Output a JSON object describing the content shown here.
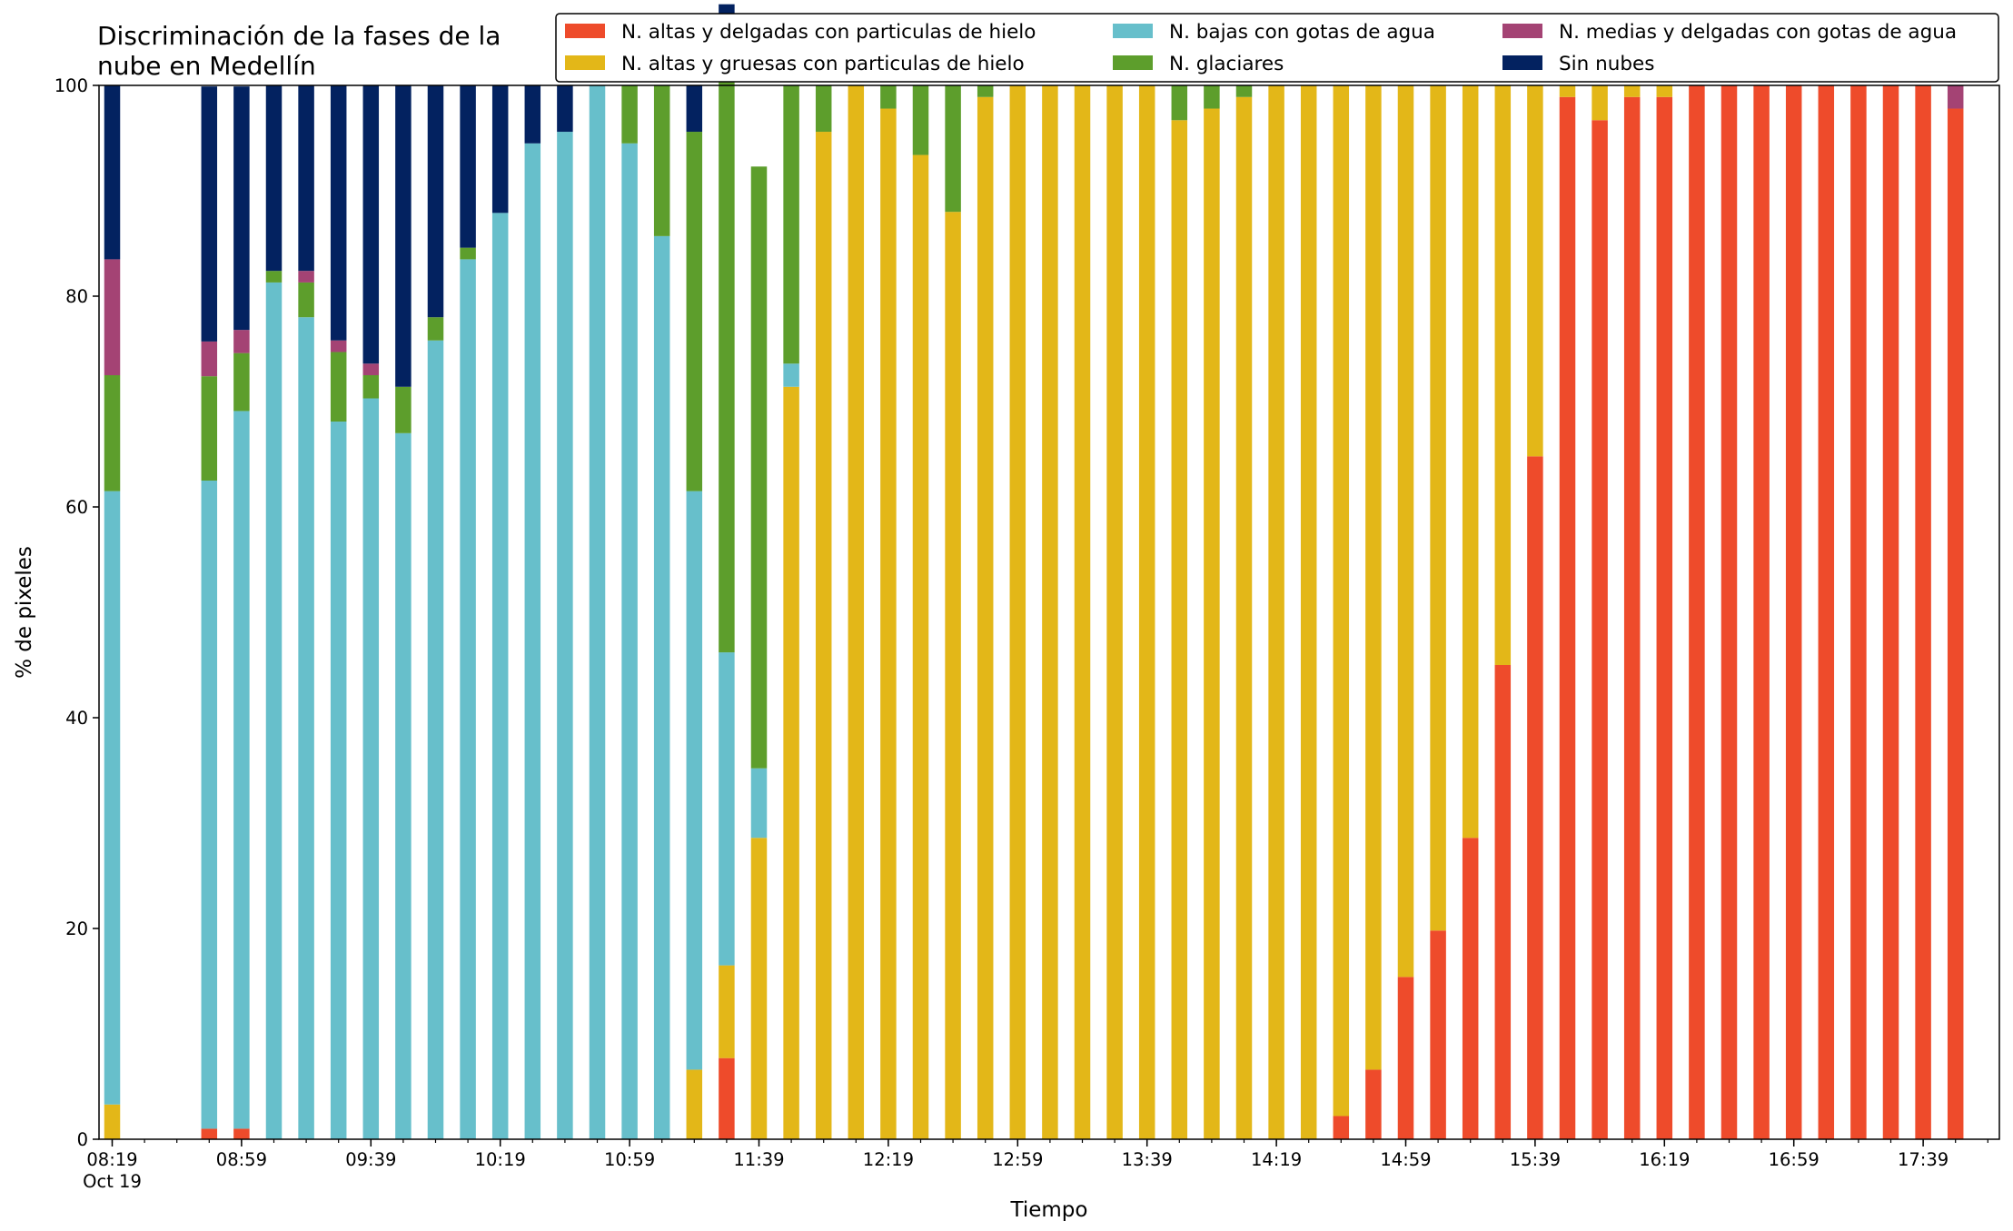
{
  "chart_data": {
    "type": "bar",
    "stacked": true,
    "title": "Discriminación de la fases de la\nnube en Medellín",
    "xlabel": "Tiempo",
    "ylabel": "% de pixeles",
    "ylim": [
      0,
      100
    ],
    "yticks": [
      0,
      20,
      40,
      60,
      80,
      100
    ],
    "x_first_time": "08:19",
    "x_interval_minutes": 10,
    "x_tick_labels": [
      "08:19",
      "08:59",
      "09:39",
      "10:19",
      "10:59",
      "11:39",
      "12:19",
      "12:59",
      "13:39",
      "14:19",
      "14:59",
      "15:39",
      "16:19",
      "16:59",
      "17:39"
    ],
    "x_tick_sublabel": "Oct 19",
    "legend_position": "top-right",
    "categories": [
      "08:19",
      "08:29",
      "08:39",
      "08:49",
      "08:59",
      "09:09",
      "09:19",
      "09:29",
      "09:39",
      "09:49",
      "09:59",
      "10:09",
      "10:19",
      "10:29",
      "10:39",
      "10:49",
      "10:59",
      "11:09",
      "11:19",
      "11:29",
      "11:39",
      "11:49",
      "11:59",
      "12:09",
      "12:19",
      "12:29",
      "12:39",
      "12:49",
      "12:59",
      "13:09",
      "13:19",
      "13:29",
      "13:39",
      "13:49",
      "13:59",
      "14:09",
      "14:19",
      "14:29",
      "14:39",
      "14:49",
      "14:59",
      "15:09",
      "15:19",
      "15:29",
      "15:39",
      "15:49",
      "15:59",
      "16:09",
      "16:19",
      "16:29",
      "16:39",
      "16:49",
      "16:59",
      "17:09",
      "17:19",
      "17:29",
      "17:39",
      "17:49"
    ],
    "series": [
      {
        "name": "N. altas y delgadas con particulas de hielo",
        "color": "#ee4b2b",
        "values": [
          0,
          null,
          null,
          1,
          1,
          0,
          0,
          0,
          0,
          0,
          0,
          0,
          0,
          0,
          0,
          0,
          0,
          0,
          0,
          7.7,
          0,
          0,
          0,
          0,
          0,
          0,
          0,
          0,
          0,
          0,
          0,
          0,
          0,
          0,
          0,
          0,
          0,
          0,
          2.2,
          6.6,
          15.4,
          19.8,
          28.6,
          45,
          64.8,
          98.9,
          96.7,
          98.9,
          98.9,
          100,
          100,
          100,
          100,
          100,
          100,
          100,
          100,
          97.8
        ]
      },
      {
        "name": "N. altas y gruesas con particulas de hielo",
        "color": "#e3b718",
        "values": [
          3.3,
          null,
          null,
          0,
          0,
          0,
          0,
          0,
          0,
          0,
          0,
          0,
          0,
          0,
          0,
          0,
          0,
          0,
          6.6,
          8.8,
          28.6,
          71.4,
          95.6,
          100,
          97.8,
          93.4,
          88,
          98.9,
          100,
          100,
          100,
          100,
          100,
          96.7,
          97.8,
          98.9,
          100,
          100,
          97.8,
          93.4,
          84.6,
          80.2,
          71.4,
          55,
          35.2,
          1.1,
          3.3,
          1.1,
          1.1,
          0,
          0,
          0,
          0,
          0,
          0,
          0,
          0,
          0
        ]
      },
      {
        "name": "N. bajas con gotas de agua",
        "color": "#67bfcb",
        "values": [
          58.2,
          null,
          null,
          61.5,
          68.1,
          81.3,
          78,
          68.1,
          70.3,
          67,
          75.8,
          83.5,
          87.9,
          94.5,
          95.6,
          100,
          94.5,
          85.7,
          54.9,
          29.7,
          6.6,
          2.2,
          0,
          0,
          0,
          0,
          0,
          0,
          0,
          0,
          0,
          0,
          0,
          0,
          0,
          0,
          0,
          0,
          0,
          0,
          0,
          0,
          0,
          0,
          0,
          0,
          0,
          0,
          0,
          0,
          0,
          0,
          0,
          0,
          0,
          0,
          0,
          0
        ]
      },
      {
        "name": "N. glaciares",
        "color": "#5d9e2c",
        "values": [
          11,
          null,
          null,
          9.9,
          5.5,
          1.1,
          3.3,
          6.6,
          2.2,
          4.4,
          2.2,
          1.1,
          0,
          0,
          0,
          0,
          5.5,
          14.3,
          34.1,
          57.1,
          57.1,
          26.4,
          4.4,
          0,
          2.2,
          6.6,
          12,
          1.1,
          0,
          0,
          0,
          0,
          0,
          3.3,
          2.2,
          1.1,
          0,
          0,
          0,
          0,
          0,
          0,
          0,
          0,
          0,
          0,
          0,
          0,
          0,
          0,
          0,
          0,
          0,
          0,
          0,
          0,
          0,
          0
        ]
      },
      {
        "name": "N. medias y delgadas con gotas de agua",
        "color": "#a44374",
        "values": [
          11,
          null,
          null,
          3.3,
          2.2,
          0,
          1.1,
          1.1,
          1.1,
          0,
          0,
          0,
          0,
          0,
          0,
          0,
          0,
          0,
          0,
          1.1,
          0,
          0,
          0,
          0,
          0,
          0,
          0,
          0,
          0,
          0,
          0,
          0,
          0,
          0,
          0,
          0,
          0,
          0,
          0,
          0,
          0,
          0,
          0,
          0,
          0,
          0,
          0,
          0,
          0,
          0,
          0,
          0,
          0,
          0,
          0,
          0,
          0,
          2.2
        ]
      },
      {
        "name": "Sin nubes",
        "color": "#032260",
        "values": [
          16.5,
          null,
          null,
          24.2,
          23.1,
          17.6,
          17.6,
          24.2,
          26.4,
          28.6,
          22,
          15.4,
          12.1,
          5.5,
          4.4,
          0,
          0,
          0,
          4.4,
          3.3,
          0,
          0,
          0,
          0,
          0,
          0,
          0,
          0,
          0,
          0,
          0,
          0,
          0,
          0,
          0,
          0,
          0,
          0,
          0,
          0,
          0,
          0,
          0,
          0,
          0,
          0,
          0,
          0,
          0,
          0,
          0,
          0,
          0,
          0,
          0,
          0,
          0,
          0
        ]
      }
    ]
  }
}
